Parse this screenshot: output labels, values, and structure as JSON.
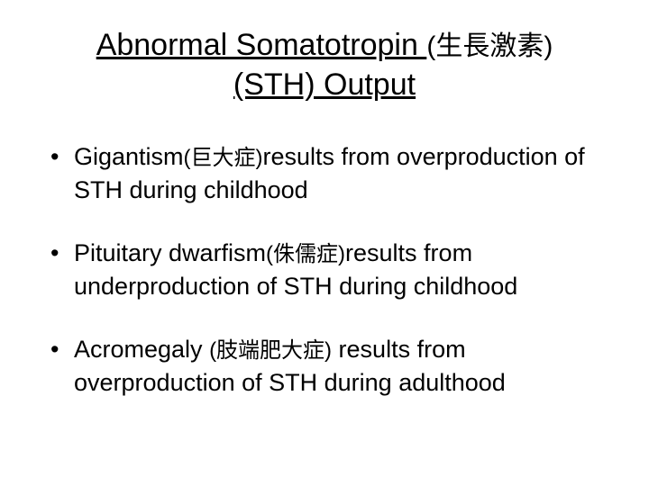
{
  "title": {
    "line1_part1": "Abnormal Somatotropin ",
    "line1_cjk": "(生長激素)",
    "line2": "(STH) Output"
  },
  "bullets": [
    {
      "part1": "Gigantism",
      "cjk": "(巨大症)",
      "part2": "results from overproduction of STH during childhood"
    },
    {
      "part1": "Pituitary dwarfism",
      "cjk": "(侏儒症)",
      "part2": "results from underproduction of STH during childhood"
    },
    {
      "part1": "Acromegaly ",
      "cjk": "(肢端肥大症)",
      "part2": " results from overproduction of STH during adulthood"
    }
  ],
  "colors": {
    "background": "#ffffff",
    "text": "#000000"
  },
  "typography": {
    "title_fontsize": 34,
    "title_cjk_fontsize": 30,
    "bullet_fontsize": 27,
    "bullet_cjk_fontsize": 24,
    "font_family": "Arial"
  }
}
